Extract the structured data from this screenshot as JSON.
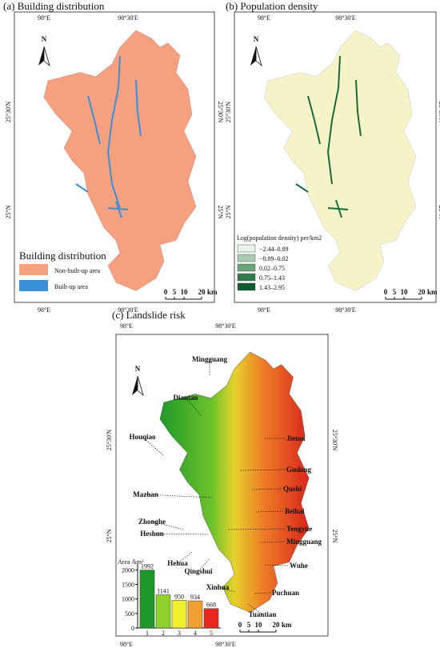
{
  "panels": [
    {
      "title": "(a) Building distribution",
      "x_labels": [
        "98°E",
        "98°30'E"
      ],
      "y_labels": [
        "25°30'N",
        "25°N"
      ],
      "north": "N",
      "legend_title": "Building distribution",
      "legend": [
        "Non-built-up area",
        "Built-up area"
      ],
      "scale": [
        "0",
        "5",
        "10",
        "20",
        "km"
      ]
    },
    {
      "title": "(b) Population density",
      "x_labels": [
        "98°E",
        "98°30'E"
      ],
      "y_labels": [
        "25°30'N",
        "25°N"
      ],
      "north": "N",
      "legend_title": "Log(population density) per/km2",
      "legend": [
        "−2.44–0.89",
        "−0.89–0.02",
        "0.02–0.75",
        "0.75–1.43",
        "1.43–2.95"
      ],
      "scale": [
        "0",
        "5",
        "10",
        "20",
        "km"
      ]
    },
    {
      "title": "(c) Landslide risk",
      "x_labels": [
        "98°E",
        "98°30'E"
      ],
      "y_labels": [
        "25°30'N",
        "25°N"
      ],
      "north": "N",
      "places": [
        "Mingguang",
        "Diantan",
        "Houqiao",
        "Jietou",
        "Gudong",
        "Qushi",
        "Mazhan",
        "Beihai",
        "Zhonghe",
        "Tengyue",
        "Heshun",
        "Mingguang",
        "Hehua",
        "Qingshui",
        "Wuhe",
        "Xinhua",
        "Puchuan",
        "Tuantian"
      ],
      "scale": [
        "0",
        "5",
        "10",
        "20",
        "km"
      ]
    }
  ],
  "chart_data": {
    "type": "bar",
    "y_label": "Area /km²",
    "categories": [
      "1",
      "2",
      "3",
      "4",
      "5"
    ],
    "values": [
      1992,
      1141,
      950,
      934,
      668
    ],
    "colors": [
      "#1f9a2a",
      "#8fd12c",
      "#f2ee2e",
      "#f0a030",
      "#e8281e"
    ],
    "ylim": [
      0,
      2200
    ],
    "yticks": [
      0,
      500,
      1000,
      1500,
      2000
    ]
  }
}
